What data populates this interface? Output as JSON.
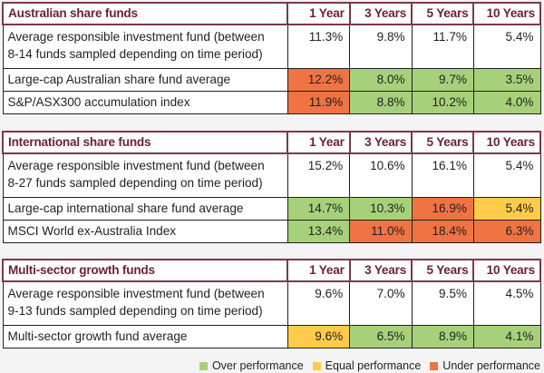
{
  "colors": {
    "over": "#a6d17a",
    "equal": "#fecb4a",
    "under": "#f07343",
    "header_text": "#6b2333"
  },
  "columns": [
    "1 Year",
    "3 Years",
    "5 Years",
    "10 Years"
  ],
  "tables": [
    {
      "category": "Australian share funds",
      "rows": [
        {
          "label_line1": "Average responsible investment fund (between",
          "label_line2": "8-14 funds sampled depending on time period)",
          "values": [
            "11.3%",
            "9.8%",
            "11.7%",
            "5.4%"
          ],
          "status": [
            "none",
            "none",
            "none",
            "none"
          ]
        },
        {
          "label_line1": "Large-cap Australian share fund average",
          "values": [
            "12.2%",
            "8.0%",
            "9.7%",
            "3.5%"
          ],
          "status": [
            "under",
            "over",
            "over",
            "over"
          ]
        },
        {
          "label_line1": "S&P/ASX300 accumulation index",
          "values": [
            "11.9%",
            "8.8%",
            "10.2%",
            "4.0%"
          ],
          "status": [
            "under",
            "over",
            "over",
            "over"
          ]
        }
      ]
    },
    {
      "category": "International share funds",
      "rows": [
        {
          "label_line1": "Average responsible investment fund (between",
          "label_line2": "8-27 funds sampled depending on time period)",
          "values": [
            "15.2%",
            "10.6%",
            "16.1%",
            "5.4%"
          ],
          "status": [
            "none",
            "none",
            "none",
            "none"
          ]
        },
        {
          "label_line1": "Large-cap international share fund average",
          "values": [
            "14.7%",
            "10.3%",
            "16.9%",
            "5.4%"
          ],
          "status": [
            "over",
            "over",
            "under",
            "equal"
          ]
        },
        {
          "label_line1": "MSCI World ex-Australia Index",
          "values": [
            "13.4%",
            "11.0%",
            "18.4%",
            "6.3%"
          ],
          "status": [
            "over",
            "under",
            "under",
            "under"
          ]
        }
      ]
    },
    {
      "category": "Multi-sector growth funds",
      "rows": [
        {
          "label_line1": "Average responsible investment fund (between",
          "label_line2": "9-13 funds sampled depending on time period)",
          "values": [
            "9.6%",
            "7.0%",
            "9.5%",
            "4.5%"
          ],
          "status": [
            "none",
            "none",
            "none",
            "none"
          ]
        },
        {
          "label_line1": "Multi-sector growth fund average",
          "values": [
            "9.6%",
            "6.5%",
            "8.9%",
            "4.1%"
          ],
          "status": [
            "equal",
            "over",
            "over",
            "over"
          ]
        }
      ]
    }
  ],
  "legend": {
    "over": "Over performance",
    "equal": "Equal performance",
    "under": "Under performance"
  }
}
